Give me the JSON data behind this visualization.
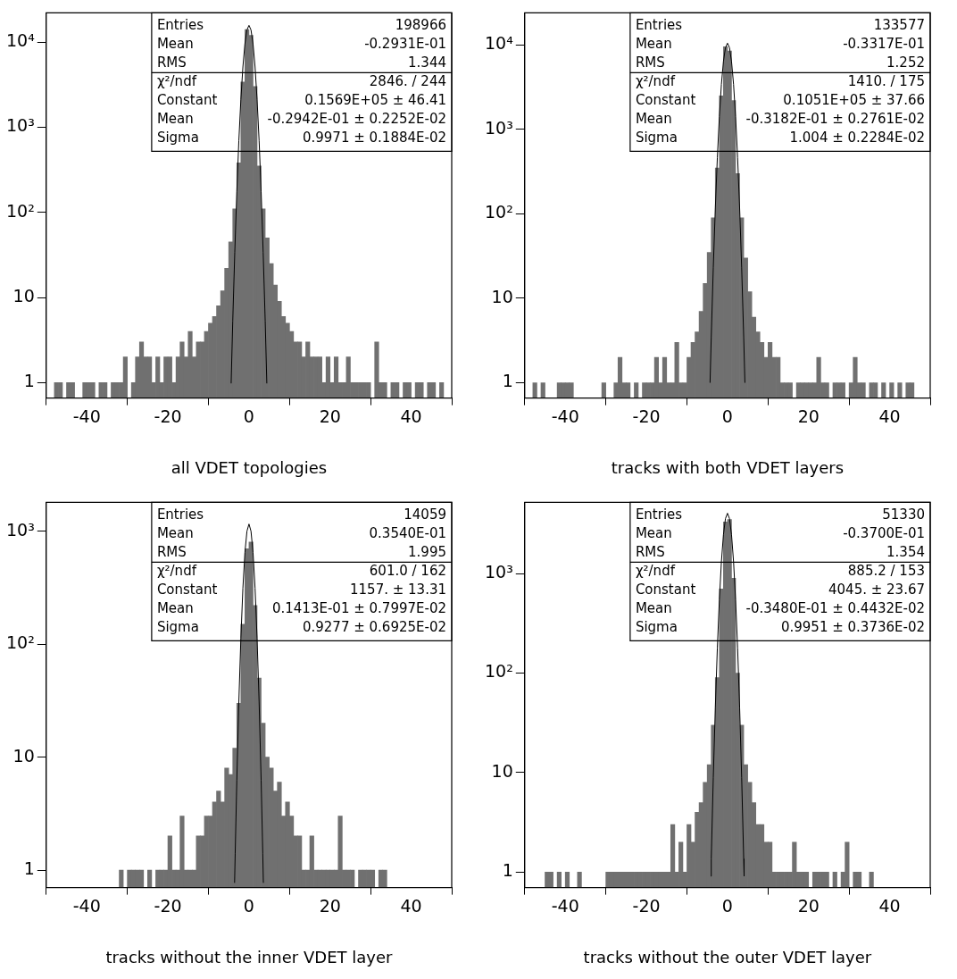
{
  "chart_data": [
    {
      "type": "histogram",
      "xlabel": "all VDET topologies",
      "log": true,
      "grid": false,
      "legend": false,
      "color": "#707070",
      "bins": [
        -50,
        -49,
        -48,
        -47,
        -46,
        -45,
        -44,
        -43,
        -42,
        -41,
        -40,
        -39,
        -38,
        -37,
        -36,
        -35,
        -34,
        -33,
        -32,
        -31,
        -30,
        -29,
        -28,
        -27,
        -26,
        -25,
        -24,
        -23,
        -22,
        -21,
        -20,
        -19,
        -18,
        -17,
        -16,
        -15,
        -14,
        -13,
        -12,
        -11,
        -10,
        -9,
        -8,
        -7,
        -6,
        -5,
        -4,
        -3,
        -2,
        -1,
        0,
        1,
        2,
        3,
        4,
        5,
        6,
        7,
        8,
        9,
        10,
        11,
        12,
        13,
        14,
        15,
        16,
        17,
        18,
        19,
        20,
        21,
        22,
        23,
        24,
        25,
        26,
        27,
        28,
        29,
        30,
        31,
        32,
        33,
        34,
        35,
        36,
        37,
        38,
        39,
        40,
        41,
        42,
        43,
        44,
        45,
        46,
        47,
        48,
        49,
        50
      ],
      "values": [
        null,
        null,
        1,
        1,
        null,
        1,
        1,
        null,
        null,
        1,
        1,
        1,
        null,
        1,
        1,
        null,
        1,
        1,
        1,
        2,
        null,
        1,
        2,
        3,
        2,
        2,
        1,
        2,
        1,
        2,
        2,
        1,
        2,
        3,
        2,
        4,
        2,
        3,
        3,
        4,
        5,
        6,
        8,
        12,
        22,
        45,
        110,
        380,
        3400,
        14000,
        12000,
        3000,
        350,
        110,
        50,
        25,
        14,
        9,
        6,
        5,
        4,
        3,
        3,
        2,
        3,
        2,
        2,
        2,
        1,
        2,
        1,
        2,
        1,
        1,
        2,
        1,
        1,
        1,
        1,
        1,
        null,
        3,
        1,
        1,
        null,
        1,
        1,
        null,
        1,
        1,
        null,
        1,
        1,
        null,
        1,
        1,
        null,
        1,
        null,
        null
      ],
      "series": [
        {
          "type": "line",
          "color": "#000000",
          "x": [
            -4.4,
            -4,
            -3.5,
            -3,
            -2.5,
            -2,
            -1.5,
            -1,
            -0.5,
            0,
            0.5,
            1,
            1.5,
            2,
            2.5,
            3,
            3.5,
            4,
            4.4
          ],
          "values": [
            0.98,
            5.3,
            34,
            174,
            690,
            2120,
            5090,
            9520,
            13850,
            15690,
            13850,
            9520,
            5090,
            2120,
            690,
            174,
            34,
            5.3,
            0.98
          ]
        }
      ],
      "xlim": [
        -50,
        50
      ],
      "xticks": [
        -40,
        -20,
        0,
        20,
        40
      ],
      "ylim": [
        0.66,
        22000
      ],
      "yticks": [
        {
          "value": 1,
          "label": "1"
        },
        {
          "value": 10,
          "label": "10"
        },
        {
          "value": 100,
          "label": "10²"
        },
        {
          "value": 1000,
          "label": "10³"
        },
        {
          "value": 10000,
          "label": "10⁴"
        }
      ],
      "annotations": [
        "Entries 198966",
        "Mean -0.2931E-01",
        "RMS 1.344",
        "χ²/ndf 2846. / 244",
        "Constant 0.1569E+05 ± 46.41",
        "Mean -0.2942E-01 ± 0.2252E-02",
        "Sigma 0.9971 ± 0.1884E-02"
      ]
    },
    {
      "type": "histogram",
      "xlabel": "tracks with both VDET layers",
      "log": true,
      "grid": false,
      "legend": false,
      "color": "#707070",
      "bins": [
        -50,
        -49,
        -48,
        -47,
        -46,
        -45,
        -44,
        -43,
        -42,
        -41,
        -40,
        -39,
        -38,
        -37,
        -36,
        -35,
        -34,
        -33,
        -32,
        -31,
        -30,
        -29,
        -28,
        -27,
        -26,
        -25,
        -24,
        -23,
        -22,
        -21,
        -20,
        -19,
        -18,
        -17,
        -16,
        -15,
        -14,
        -13,
        -12,
        -11,
        -10,
        -9,
        -8,
        -7,
        -6,
        -5,
        -4,
        -3,
        -2,
        -1,
        0,
        1,
        2,
        3,
        4,
        5,
        6,
        7,
        8,
        9,
        10,
        11,
        12,
        13,
        14,
        15,
        16,
        17,
        18,
        19,
        20,
        21,
        22,
        23,
        24,
        25,
        26,
        27,
        28,
        29,
        30,
        31,
        32,
        33,
        34,
        35,
        36,
        37,
        38,
        39,
        40,
        41,
        42,
        43,
        44,
        45,
        46,
        47,
        48,
        49,
        50
      ],
      "values": [
        null,
        null,
        1,
        null,
        1,
        null,
        null,
        null,
        1,
        1,
        1,
        1,
        null,
        null,
        null,
        null,
        null,
        null,
        null,
        1,
        null,
        null,
        1,
        2,
        1,
        1,
        null,
        1,
        null,
        1,
        1,
        1,
        2,
        1,
        2,
        1,
        1,
        3,
        1,
        1,
        2,
        3,
        4,
        7,
        15,
        35,
        90,
        350,
        2500,
        9500,
        8500,
        2200,
        300,
        90,
        30,
        12,
        6,
        4,
        3,
        2,
        3,
        2,
        2,
        1,
        1,
        1,
        null,
        1,
        1,
        1,
        1,
        1,
        2,
        1,
        1,
        null,
        1,
        1,
        1,
        null,
        1,
        2,
        1,
        1,
        null,
        1,
        1,
        null,
        1,
        null,
        1,
        null,
        1,
        null,
        1,
        1,
        null,
        null,
        null,
        null
      ],
      "series": [
        {
          "type": "line",
          "color": "#000000",
          "x": [
            -4.3,
            -4,
            -3.5,
            -3,
            -2.5,
            -2,
            -1.5,
            -1,
            -0.5,
            0,
            0.5,
            1,
            1.5,
            2,
            2.5,
            3,
            3.5,
            4,
            4.3
          ],
          "values": [
            1.0,
            3.5,
            23,
            117,
            461,
            1420,
            3410,
            6370,
            9280,
            10510,
            9280,
            6370,
            3410,
            1420,
            461,
            117,
            23,
            3.5,
            1.0
          ]
        }
      ],
      "xlim": [
        -50,
        50
      ],
      "xticks": [
        -40,
        -20,
        0,
        20,
        40
      ],
      "ylim": [
        0.66,
        24000
      ],
      "yticks": [
        {
          "value": 1,
          "label": "1"
        },
        {
          "value": 10,
          "label": "10"
        },
        {
          "value": 100,
          "label": "10²"
        },
        {
          "value": 1000,
          "label": "10³"
        },
        {
          "value": 10000,
          "label": "10⁴"
        }
      ],
      "annotations": [
        "Entries 133577",
        "Mean -0.3317E-01",
        "RMS 1.252",
        "χ²/ndf 1410. / 175",
        "Constant 0.1051E+05 ± 37.66",
        "Mean -0.3182E-01 ± 0.2761E-02",
        "Sigma 1.004 ± 0.2284E-02"
      ]
    },
    {
      "type": "histogram",
      "xlabel": "tracks without the inner VDET layer",
      "log": true,
      "grid": false,
      "legend": false,
      "color": "#707070",
      "bins": [
        -50,
        -49,
        -48,
        -47,
        -46,
        -45,
        -44,
        -43,
        -42,
        -41,
        -40,
        -39,
        -38,
        -37,
        -36,
        -35,
        -34,
        -33,
        -32,
        -31,
        -30,
        -29,
        -28,
        -27,
        -26,
        -25,
        -24,
        -23,
        -22,
        -21,
        -20,
        -19,
        -18,
        -17,
        -16,
        -15,
        -14,
        -13,
        -12,
        -11,
        -10,
        -9,
        -8,
        -7,
        -6,
        -5,
        -4,
        -3,
        -2,
        -1,
        0,
        1,
        2,
        3,
        4,
        5,
        6,
        7,
        8,
        9,
        10,
        11,
        12,
        13,
        14,
        15,
        16,
        17,
        18,
        19,
        20,
        21,
        22,
        23,
        24,
        25,
        26,
        27,
        28,
        29,
        30,
        31,
        32,
        33,
        34,
        35,
        36,
        37,
        38,
        39,
        40,
        41,
        42,
        43,
        44,
        45,
        46,
        47,
        48,
        49,
        50
      ],
      "values": [
        null,
        null,
        null,
        null,
        null,
        null,
        null,
        null,
        null,
        null,
        null,
        null,
        null,
        null,
        null,
        null,
        null,
        null,
        1,
        null,
        1,
        1,
        1,
        1,
        null,
        1,
        null,
        1,
        1,
        1,
        2,
        1,
        1,
        3,
        1,
        1,
        1,
        2,
        2,
        3,
        3,
        4,
        5,
        4,
        8,
        7,
        12,
        30,
        150,
        700,
        800,
        220,
        50,
        20,
        10,
        8,
        5,
        6,
        3,
        4,
        3,
        2,
        2,
        1,
        1,
        2,
        1,
        1,
        1,
        1,
        1,
        1,
        3,
        1,
        1,
        1,
        null,
        1,
        1,
        1,
        1,
        null,
        1,
        1,
        null,
        null,
        null,
        null,
        null,
        null,
        null,
        null,
        null,
        null,
        null,
        null,
        null,
        null,
        null,
        null
      ],
      "series": [
        {
          "type": "line",
          "color": "#000000",
          "x": [
            -3.55,
            -3.4,
            -3,
            -2.5,
            -2,
            -1.5,
            -1,
            -0.5,
            0,
            0.5,
            1,
            1.5,
            2,
            2.5,
            3,
            3.4,
            3.55
          ],
          "values": [
            0.77,
            1.41,
            6.2,
            30.7,
            113,
            313,
            647,
            1000,
            1157,
            1000,
            647,
            313,
            113,
            30.7,
            6.2,
            1.41,
            0.77
          ]
        }
      ],
      "xlim": [
        -50,
        50
      ],
      "xticks": [
        -40,
        -20,
        0,
        20,
        40
      ],
      "ylim": [
        0.73,
        1800
      ],
      "yticks": [
        {
          "value": 1,
          "label": "1"
        },
        {
          "value": 10,
          "label": "10"
        },
        {
          "value": 100,
          "label": "10²"
        },
        {
          "value": 1000,
          "label": "10³"
        }
      ],
      "annotations": [
        "Entries 14059",
        "Mean 0.3540E-01",
        "RMS 1.995",
        "χ²/ndf 601.0 / 162",
        "Constant 1157. ± 13.31",
        "Mean 0.1413E-01 ± 0.7997E-02",
        "Sigma 0.9277 ± 0.6925E-02"
      ]
    },
    {
      "type": "histogram",
      "xlabel": "tracks without the outer VDET layer",
      "log": true,
      "grid": false,
      "legend": false,
      "color": "#707070",
      "bins": [
        -50,
        -49,
        -48,
        -47,
        -46,
        -45,
        -44,
        -43,
        -42,
        -41,
        -40,
        -39,
        -38,
        -37,
        -36,
        -35,
        -34,
        -33,
        -32,
        -31,
        -30,
        -29,
        -28,
        -27,
        -26,
        -25,
        -24,
        -23,
        -22,
        -21,
        -20,
        -19,
        -18,
        -17,
        -16,
        -15,
        -14,
        -13,
        -12,
        -11,
        -10,
        -9,
        -8,
        -7,
        -6,
        -5,
        -4,
        -3,
        -2,
        -1,
        0,
        1,
        2,
        3,
        4,
        5,
        6,
        7,
        8,
        9,
        10,
        11,
        12,
        13,
        14,
        15,
        16,
        17,
        18,
        19,
        20,
        21,
        22,
        23,
        24,
        25,
        26,
        27,
        28,
        29,
        30,
        31,
        32,
        33,
        34,
        35,
        36,
        37,
        38,
        39,
        40,
        41,
        42,
        43,
        44,
        45,
        46,
        47,
        48,
        49,
        50
      ],
      "values": [
        null,
        null,
        null,
        null,
        null,
        1,
        1,
        null,
        1,
        null,
        1,
        null,
        null,
        1,
        null,
        null,
        null,
        null,
        null,
        null,
        1,
        1,
        1,
        1,
        1,
        1,
        1,
        1,
        1,
        1,
        1,
        1,
        1,
        1,
        1,
        1,
        3,
        1,
        2,
        1,
        3,
        2,
        4,
        5,
        8,
        12,
        30,
        90,
        700,
        3300,
        3500,
        900,
        100,
        30,
        12,
        8,
        5,
        3,
        3,
        2,
        2,
        1,
        1,
        1,
        1,
        1,
        2,
        1,
        1,
        1,
        null,
        1,
        1,
        1,
        1,
        null,
        1,
        null,
        1,
        2,
        null,
        1,
        1,
        null,
        null,
        1,
        null,
        null,
        null,
        null,
        null,
        null,
        null,
        null,
        null,
        null,
        null,
        null,
        null,
        null
      ],
      "series": [
        {
          "type": "line",
          "color": "#000000",
          "x": [
            -4.1,
            -4,
            -3.5,
            -3,
            -2.5,
            -2,
            -1.5,
            -1,
            -0.5,
            0,
            0.5,
            1,
            1.5,
            2,
            2.5,
            3,
            3.5,
            4,
            4.1
          ],
          "values": [
            0.91,
            1.36,
            8.9,
            45,
            178,
            547,
            1313,
            2453,
            3570,
            4045,
            3570,
            2453,
            1313,
            547,
            178,
            45,
            8.9,
            1.36,
            0.91
          ]
        }
      ],
      "xlim": [
        -50,
        50
      ],
      "xticks": [
        -40,
        -20,
        0,
        20,
        40
      ],
      "ylim": [
        0.7,
        5200
      ],
      "yticks": [
        {
          "value": 1,
          "label": "1"
        },
        {
          "value": 10,
          "label": "10"
        },
        {
          "value": 100,
          "label": "10²"
        },
        {
          "value": 1000,
          "label": "10³"
        }
      ],
      "annotations": [
        "Entries 51330",
        "Mean -0.3700E-01",
        "RMS 1.354",
        "χ²/ndf 885.2 / 153",
        "Constant 4045. ± 23.67",
        "Mean -0.3480E-01 ± 0.4432E-02",
        "Sigma 0.9951 ± 0.3736E-02"
      ]
    }
  ]
}
